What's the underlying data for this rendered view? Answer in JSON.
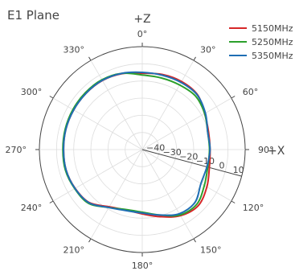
{
  "chart_data": {
    "type": "polar-line",
    "title": "E1 Plane",
    "top_axis_label": "+Z",
    "right_axis_label": "+X",
    "angular_ticks": [
      "0°",
      "30°",
      "60°",
      "90°",
      "120°",
      "150°",
      "180°",
      "210°",
      "240°",
      "270°",
      "300°",
      "330°"
    ],
    "radial_ticks": [
      "−40",
      "−30",
      "−20",
      "−10",
      "0",
      "10"
    ],
    "radial_range": [
      -50,
      10
    ],
    "angular_direction": "clockwise",
    "zero_at": "top",
    "grid": true,
    "legend_position": "top-right",
    "theta": [
      0,
      15,
      30,
      45,
      60,
      75,
      90,
      105,
      120,
      135,
      150,
      165,
      180,
      195,
      210,
      225,
      240,
      255,
      270,
      285,
      300,
      315,
      330,
      345,
      360
    ],
    "series": [
      {
        "name": "5150MHz",
        "color": "#d62728",
        "values": [
          -5.5,
          -4.7,
          -4.2,
          -4.6,
          -8.0,
          -10.0,
          -10.5,
          -9.5,
          -6.5,
          -3.8,
          -5.5,
          -9.5,
          -12.5,
          -13.5,
          -11.5,
          -6.3,
          -4.8,
          -4.0,
          -4.1,
          -3.9,
          -3.8,
          -3.6,
          -3.5,
          -4.2,
          -5.5
        ]
      },
      {
        "name": "5250MHz",
        "color": "#2ca02c",
        "values": [
          -6.5,
          -6.8,
          -6.5,
          -6.0,
          -8.0,
          -10.5,
          -10.8,
          -10.5,
          -8.2,
          -5.0,
          -6.0,
          -10.5,
          -13.5,
          -13.8,
          -11.0,
          -5.7,
          -4.5,
          -3.6,
          -3.7,
          -3.5,
          -3.3,
          -3.1,
          -3.0,
          -4.0,
          -6.5
        ]
      },
      {
        "name": "5350MHz",
        "color": "#1f6eb4",
        "values": [
          -5.0,
          -5.1,
          -4.8,
          -4.8,
          -7.5,
          -10.5,
          -10.5,
          -11.0,
          -10.5,
          -6.5,
          -6.8,
          -10.5,
          -13.0,
          -13.2,
          -11.0,
          -6.1,
          -4.7,
          -4.0,
          -4.1,
          -3.9,
          -3.8,
          -3.6,
          -3.4,
          -4.0,
          -5.0
        ]
      }
    ]
  }
}
